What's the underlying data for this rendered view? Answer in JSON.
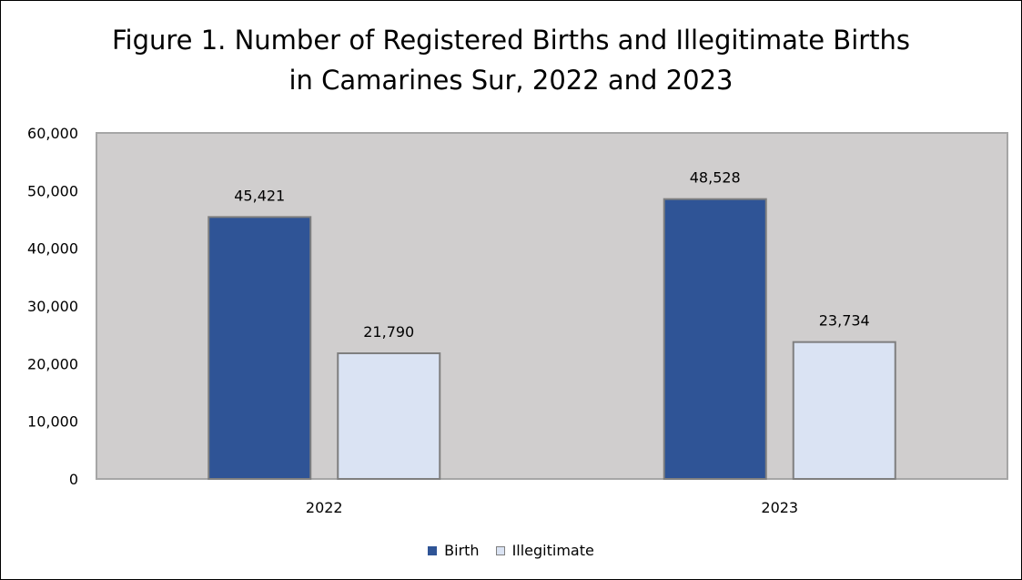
{
  "colors": {
    "plot_background": "#d0cece",
    "birth": "#2f5496",
    "illegitimate": "#dae3f3",
    "bar_border": "#7f7f7f",
    "frame": "#000000"
  },
  "chart_data": {
    "type": "bar",
    "title_line1": "Figure 1. Number of Registered Births and Illegitimate Births",
    "title_line2": "in Camarines Sur, 2022 and 2023",
    "categories": [
      "2022",
      "2023"
    ],
    "series": [
      {
        "name": "Birth",
        "values": [
          45421,
          48528
        ],
        "labels": [
          "45,421",
          "48,528"
        ]
      },
      {
        "name": "Illegitimate",
        "values": [
          21790,
          23734
        ],
        "labels": [
          "21,790",
          "23,734"
        ]
      }
    ],
    "ylim": [
      0,
      60000
    ],
    "yticks": [
      0,
      10000,
      20000,
      30000,
      40000,
      50000,
      60000
    ],
    "ytick_labels": [
      "0",
      "10,000",
      "20,000",
      "30,000",
      "40,000",
      "50,000",
      "60,000"
    ],
    "grid": false,
    "legend_position": "bottom"
  }
}
